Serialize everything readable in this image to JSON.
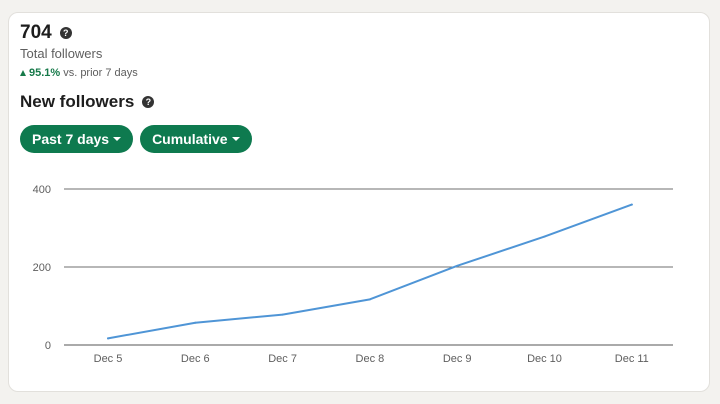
{
  "summary": {
    "total_count": "704",
    "total_label": "Total followers",
    "change_pct": "95.1%",
    "change_text": "vs. prior 7 days",
    "change_color": "#177a4a"
  },
  "section": {
    "title": "New followers"
  },
  "filters": {
    "period_label": "Past 7 days",
    "mode_label": "Cumulative",
    "pill_color": "#0e7a4f"
  },
  "chart_data": {
    "type": "line",
    "categories": [
      "Dec 5",
      "Dec 6",
      "Dec 7",
      "Dec 8",
      "Dec 9",
      "Dec 10",
      "Dec 11"
    ],
    "series": [
      {
        "values": [
          17,
          57,
          78,
          117,
          203,
          278,
          360
        ],
        "color": "#4f95d6"
      }
    ],
    "yticks": [
      0,
      200,
      400
    ],
    "ylim": [
      0,
      400
    ],
    "grid": true,
    "legend": "none"
  }
}
